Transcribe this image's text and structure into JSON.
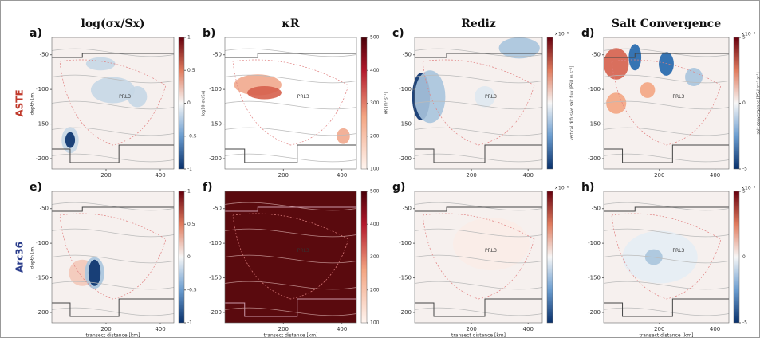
{
  "chart_data": [
    {
      "type": "heatmap",
      "panel_label": "a)",
      "column_title": "log(σx/Sx)",
      "row_label": "ASTE",
      "row_color": "#c0392b",
      "ylabel": "depth [m]",
      "cmap": "diverging",
      "annotation": "PRL3",
      "xlim": [
        0,
        450
      ],
      "xticks": [
        200,
        400
      ],
      "ylim": [
        -215,
        -25
      ],
      "yticks": [
        -50,
        -100,
        -150,
        -200
      ],
      "colorbar": {
        "label": "log10(σx/Sx)",
        "lim": [
          -1,
          1
        ],
        "ticks": [
          -1,
          -0.5,
          0,
          0.5,
          1
        ]
      }
    },
    {
      "type": "heatmap",
      "panel_label": "b)",
      "column_title": "κR",
      "cmap": "sequential",
      "annotation": "PRL3",
      "xlim": [
        0,
        450
      ],
      "xticks": [
        200,
        400
      ],
      "ylim": [
        -215,
        -25
      ],
      "yticks": [
        -50,
        -100,
        -150,
        -200
      ],
      "colorbar": {
        "label": "κR [m² s⁻¹]",
        "lim": [
          100,
          500
        ],
        "ticks": [
          100,
          200,
          300,
          400,
          500
        ]
      }
    },
    {
      "type": "heatmap",
      "panel_label": "c)",
      "column_title": "Rediz",
      "cmap": "diverging",
      "annotation": "PRL3",
      "xlim": [
        0,
        450
      ],
      "xticks": [
        200,
        400
      ],
      "ylim": [
        -215,
        -25
      ],
      "yticks": [
        -50,
        -100,
        -150,
        -200
      ],
      "colorbar": {
        "label": "vertical diffusive salt flux [PSU m s⁻¹]",
        "multiplier": "×10⁻⁵",
        "lim": [
          -1,
          1
        ],
        "ticks": []
      }
    },
    {
      "type": "heatmap",
      "panel_label": "d)",
      "column_title": "Salt Convergence",
      "cmap": "diverging",
      "annotation": "PRL3",
      "xlim": [
        0,
        450
      ],
      "xticks": [
        200,
        400
      ],
      "ylim": [
        -215,
        -25
      ],
      "yticks": [
        -50,
        -100,
        -150,
        -200
      ],
      "colorbar": {
        "label": "salt convergence [PSU m⁻³ s⁻¹]",
        "multiplier": "×10⁻⁶",
        "lim": [
          -5,
          5
        ],
        "ticks": [
          -5,
          0,
          5
        ]
      }
    },
    {
      "type": "heatmap",
      "panel_label": "e)",
      "row_label": "Arc36",
      "row_color": "#2c3e8c",
      "ylabel": "depth [m]",
      "xlabel": "transect distance [km]",
      "cmap": "diverging",
      "xlim": [
        0,
        450
      ],
      "xticks": [
        200,
        400
      ],
      "ylim": [
        -215,
        -25
      ],
      "yticks": [
        -50,
        -100,
        -150,
        -200
      ],
      "colorbar": {
        "lim": [
          -1,
          1
        ],
        "ticks": [
          -1,
          -0.5,
          0,
          0.5,
          1
        ]
      }
    },
    {
      "type": "heatmap",
      "panel_label": "f)",
      "xlabel": "transect distance [km]",
      "cmap": "sequential",
      "annotation": "PRL3",
      "xlim": [
        0,
        450
      ],
      "xticks": [
        200,
        400
      ],
      "ylim": [
        -215,
        -25
      ],
      "yticks": [
        -50,
        -100,
        -150,
        -200
      ],
      "colorbar": {
        "lim": [
          100,
          500
        ],
        "ticks": [
          100,
          200,
          300,
          400,
          500
        ]
      }
    },
    {
      "type": "heatmap",
      "panel_label": "g)",
      "xlabel": "transect distance [km]",
      "cmap": "diverging",
      "annotation": "PRL3",
      "xlim": [
        0,
        450
      ],
      "xticks": [
        200,
        400
      ],
      "ylim": [
        -215,
        -25
      ],
      "yticks": [
        -50,
        -100,
        -150,
        -200
      ],
      "colorbar": {
        "multiplier": "×10⁻⁵",
        "lim": [
          -1,
          1
        ],
        "ticks": []
      }
    },
    {
      "type": "heatmap",
      "panel_label": "h)",
      "xlabel": "transect distance [km]",
      "cmap": "diverging",
      "annotation": "PRL3",
      "xlim": [
        0,
        450
      ],
      "xticks": [
        200,
        400
      ],
      "ylim": [
        -215,
        -25
      ],
      "yticks": [
        -50,
        -100,
        -150,
        -200
      ],
      "colorbar": {
        "multiplier": "×10⁻⁶",
        "lim": [
          -5,
          5
        ],
        "ticks": [
          -5,
          0,
          5
        ]
      }
    }
  ]
}
